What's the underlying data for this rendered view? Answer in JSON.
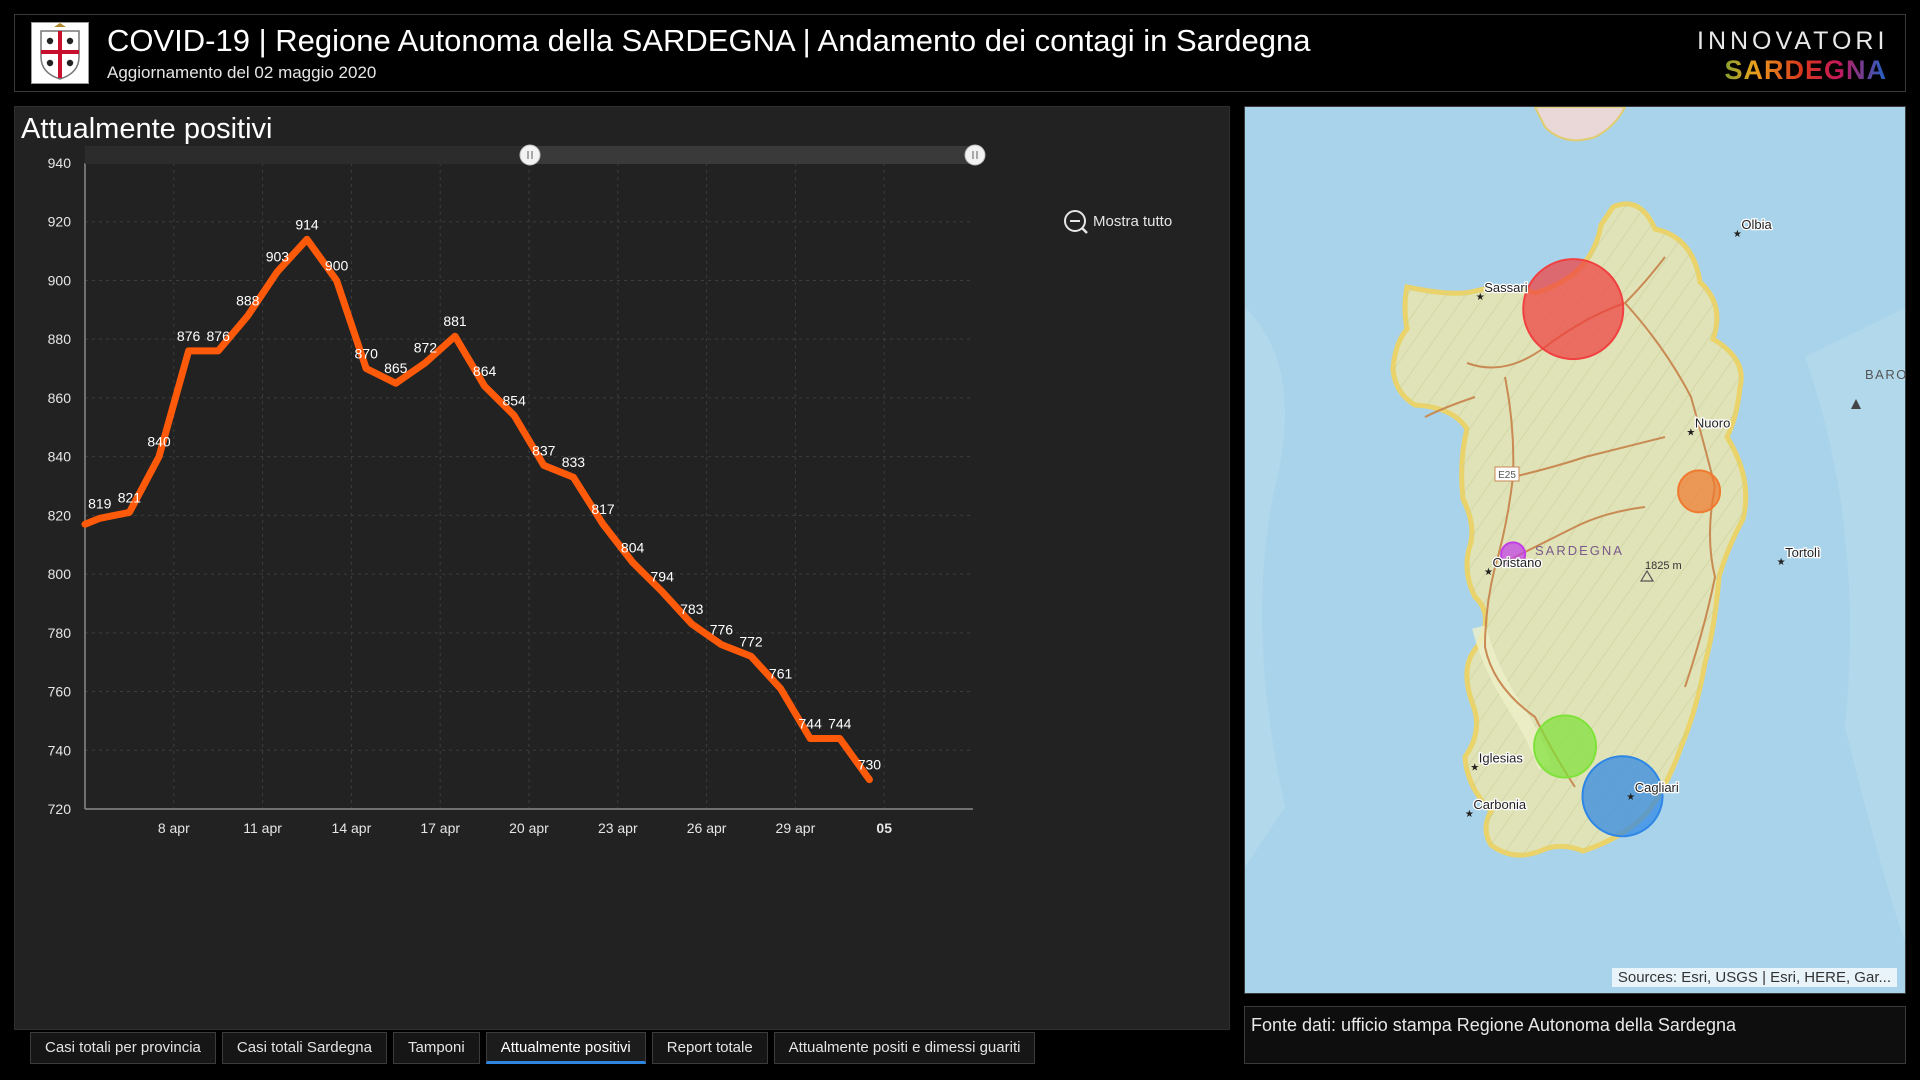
{
  "header": {
    "title": "COVID-19 | Regione Autonoma della SARDEGNA | Andamento dei contagi in Sardegna",
    "subtitle": "Aggiornamento del 02 maggio 2020",
    "brand_top": "INNOVATORI",
    "brand_bottom": "SARDEGNA"
  },
  "panel": {
    "title": "Attualmente positivi",
    "zoom_button": "Mostra tutto",
    "scrollbar_range": [
      0.5,
      1.0
    ]
  },
  "chart_data": {
    "type": "line",
    "title": "",
    "xlabel": "",
    "ylabel": "",
    "ylim": [
      720,
      940
    ],
    "y_ticks": [
      720,
      740,
      760,
      780,
      800,
      820,
      840,
      860,
      880,
      900,
      920,
      940
    ],
    "x_range": [
      5,
      35
    ],
    "x_ticks": [
      {
        "x": 8,
        "label": "8 apr"
      },
      {
        "x": 11,
        "label": "11 apr"
      },
      {
        "x": 14,
        "label": "14 apr"
      },
      {
        "x": 17,
        "label": "17 apr"
      },
      {
        "x": 20,
        "label": "20 apr"
      },
      {
        "x": 23,
        "label": "23 apr"
      },
      {
        "x": 26,
        "label": "26 apr"
      },
      {
        "x": 29,
        "label": "29 apr"
      },
      {
        "x": 32,
        "label": "05"
      }
    ],
    "grid": true,
    "color": "#ff5a0a",
    "points": [
      {
        "x": 5,
        "y": 817,
        "label": ""
      },
      {
        "x": 5.5,
        "y": 819,
        "label": "819"
      },
      {
        "x": 6.5,
        "y": 821,
        "label": "821"
      },
      {
        "x": 7.5,
        "y": 840,
        "label": "840"
      },
      {
        "x": 8.5,
        "y": 876,
        "label": "876"
      },
      {
        "x": 9.5,
        "y": 876,
        "label": "876"
      },
      {
        "x": 10.5,
        "y": 888,
        "label": "888"
      },
      {
        "x": 11.5,
        "y": 903,
        "label": "903"
      },
      {
        "x": 12.5,
        "y": 914,
        "label": "914"
      },
      {
        "x": 13.5,
        "y": 900,
        "label": "900"
      },
      {
        "x": 14.5,
        "y": 870,
        "label": "870"
      },
      {
        "x": 15.5,
        "y": 865,
        "label": "865"
      },
      {
        "x": 16.5,
        "y": 872,
        "label": "872"
      },
      {
        "x": 17.5,
        "y": 881,
        "label": "881"
      },
      {
        "x": 18.5,
        "y": 864,
        "label": "864"
      },
      {
        "x": 19.5,
        "y": 854,
        "label": "854"
      },
      {
        "x": 20.5,
        "y": 837,
        "label": "837"
      },
      {
        "x": 21.5,
        "y": 833,
        "label": "833"
      },
      {
        "x": 22.5,
        "y": 817,
        "label": "817"
      },
      {
        "x": 23.5,
        "y": 804,
        "label": "804"
      },
      {
        "x": 24.5,
        "y": 794,
        "label": "794"
      },
      {
        "x": 25.5,
        "y": 783,
        "label": "783"
      },
      {
        "x": 26.5,
        "y": 776,
        "label": "776"
      },
      {
        "x": 27.5,
        "y": 772,
        "label": "772"
      },
      {
        "x": 28.5,
        "y": 761,
        "label": "761"
      },
      {
        "x": 29.5,
        "y": 744,
        "label": "744"
      },
      {
        "x": 30.5,
        "y": 744,
        "label": "744"
      },
      {
        "x": 31.5,
        "y": 730,
        "label": "730"
      }
    ]
  },
  "map": {
    "region_label": "SARDEGNA",
    "road_label": "E25",
    "peak_label": "1825 m",
    "sea_label": "BARONIE SEAMOUNT",
    "attribution": "Sources: Esri, USGS | Esri, HERE, Gar...",
    "colors": {
      "land": "#dfe3b7",
      "sea": "#a9d3ea",
      "coast": "#e9d36a",
      "road": "#c98a53"
    },
    "cities": [
      {
        "name": "Sassari",
        "lon": 8.56,
        "lat": 40.73
      },
      {
        "name": "Olbia",
        "lon": 9.5,
        "lat": 40.92
      },
      {
        "name": "Nuoro",
        "lon": 9.33,
        "lat": 40.32
      },
      {
        "name": "Oristano",
        "lon": 8.59,
        "lat": 39.9
      },
      {
        "name": "Tortolì",
        "lon": 9.66,
        "lat": 39.93
      },
      {
        "name": "Iglesias",
        "lon": 8.54,
        "lat": 39.31
      },
      {
        "name": "Carbonia",
        "lon": 8.52,
        "lat": 39.17
      },
      {
        "name": "Cagliari",
        "lon": 9.11,
        "lat": 39.22
      }
    ],
    "bubbles": [
      {
        "lon": 8.9,
        "lat": 40.69,
        "r": 50,
        "color": "#f04040"
      },
      {
        "lon": 9.36,
        "lat": 40.14,
        "r": 21,
        "color": "#f07a30"
      },
      {
        "lon": 8.68,
        "lat": 39.95,
        "r": 12,
        "color": "#c23ee6"
      },
      {
        "lon": 8.87,
        "lat": 39.37,
        "r": 31,
        "color": "#7fe23a"
      },
      {
        "lon": 9.08,
        "lat": 39.22,
        "r": 40,
        "color": "#2e86e6"
      }
    ]
  },
  "source": {
    "text": "Fonte dati: ufficio stampa Regione Autonoma della Sardegna"
  },
  "tabs": [
    {
      "label": "Casi totali per provincia",
      "active": false
    },
    {
      "label": "Casi totali Sardegna",
      "active": false
    },
    {
      "label": "Tamponi",
      "active": false
    },
    {
      "label": "Attualmente positivi",
      "active": true
    },
    {
      "label": "Report totale",
      "active": false
    },
    {
      "label": "Attualmente positi e dimessi guariti",
      "active": false
    }
  ]
}
